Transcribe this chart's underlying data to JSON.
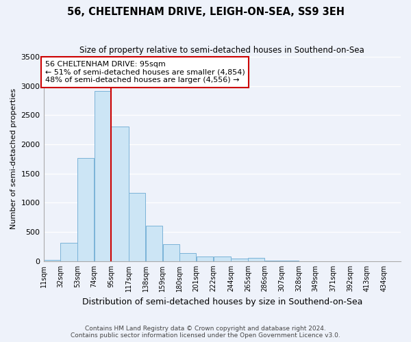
{
  "title": "56, CHELTENHAM DRIVE, LEIGH-ON-SEA, SS9 3EH",
  "subtitle": "Size of property relative to semi-detached houses in Southend-on-Sea",
  "xlabel": "Distribution of semi-detached houses by size in Southend-on-Sea",
  "ylabel": "Number of semi-detached properties",
  "footer_line1": "Contains HM Land Registry data © Crown copyright and database right 2024.",
  "footer_line2": "Contains public sector information licensed under the Open Government Licence v3.0.",
  "annotation_title": "56 CHELTENHAM DRIVE: 95sqm",
  "annotation_line1": "← 51% of semi-detached houses are smaller (4,854)",
  "annotation_line2": "48% of semi-detached houses are larger (4,556) →",
  "property_size_x": 95,
  "bar_left_edges": [
    11,
    32,
    53,
    74,
    95,
    117,
    138,
    159,
    180,
    201,
    222,
    244,
    265,
    286,
    307,
    328,
    349,
    371,
    392,
    413
  ],
  "bar_widths": [
    21,
    21,
    21,
    21,
    22,
    21,
    21,
    21,
    21,
    21,
    22,
    21,
    21,
    21,
    21,
    21,
    22,
    21,
    21,
    21
  ],
  "bar_heights": [
    20,
    310,
    1770,
    2920,
    2300,
    1170,
    610,
    290,
    140,
    75,
    80,
    45,
    55,
    5,
    5,
    0,
    0,
    0,
    0,
    0
  ],
  "tick_labels": [
    "11sqm",
    "32sqm",
    "53sqm",
    "74sqm",
    "95sqm",
    "117sqm",
    "138sqm",
    "159sqm",
    "180sqm",
    "201sqm",
    "222sqm",
    "244sqm",
    "265sqm",
    "286sqm",
    "307sqm",
    "328sqm",
    "349sqm",
    "371sqm",
    "392sqm",
    "413sqm",
    "434sqm"
  ],
  "bar_color": "#cce5f5",
  "bar_edge_color": "#7ab3d8",
  "red_line_color": "#cc0000",
  "background_color": "#eef2fa",
  "grid_color": "#ffffff",
  "ylim": [
    0,
    3500
  ],
  "yticks": [
    0,
    500,
    1000,
    1500,
    2000,
    2500,
    3000,
    3500
  ],
  "xmin": 11,
  "xmax": 455
}
